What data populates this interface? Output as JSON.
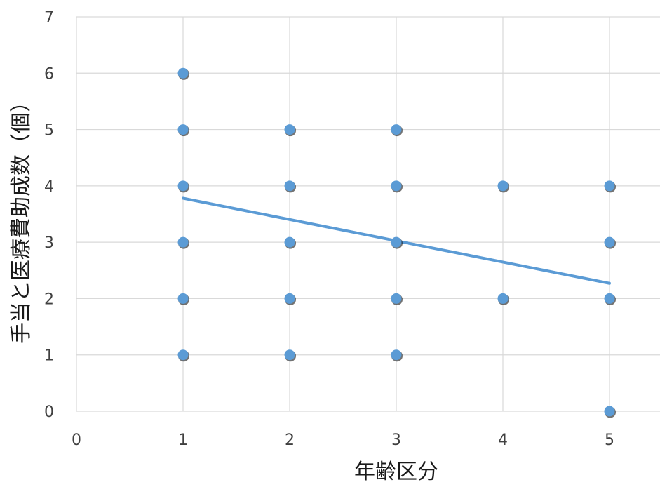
{
  "chart_data": {
    "type": "scatter",
    "title": "",
    "xlabel": "年齢区分",
    "ylabel": "手当と医療費助成数（個）",
    "xlim": [
      0,
      5.5
    ],
    "ylim": [
      0,
      7
    ],
    "x_ticks": [
      "0",
      "1",
      "2",
      "3",
      "4",
      "5"
    ],
    "y_ticks": [
      "0",
      "1",
      "2",
      "3",
      "4",
      "5",
      "6",
      "7"
    ],
    "grid": true,
    "legend": "none",
    "point_color": "#5b9bd5",
    "trendline_color": "#5b9bd5",
    "series": [
      {
        "points": [
          {
            "x": 1,
            "y": 6
          },
          {
            "x": 1,
            "y": 5
          },
          {
            "x": 1,
            "y": 4
          },
          {
            "x": 1,
            "y": 3
          },
          {
            "x": 1,
            "y": 2
          },
          {
            "x": 1,
            "y": 1
          },
          {
            "x": 2,
            "y": 5
          },
          {
            "x": 2,
            "y": 4
          },
          {
            "x": 2,
            "y": 3
          },
          {
            "x": 2,
            "y": 2
          },
          {
            "x": 2,
            "y": 1
          },
          {
            "x": 3,
            "y": 5
          },
          {
            "x": 3,
            "y": 4
          },
          {
            "x": 3,
            "y": 3
          },
          {
            "x": 3,
            "y": 2
          },
          {
            "x": 3,
            "y": 1
          },
          {
            "x": 4,
            "y": 4
          },
          {
            "x": 4,
            "y": 2
          },
          {
            "x": 5,
            "y": 4
          },
          {
            "x": 5,
            "y": 3
          },
          {
            "x": 5,
            "y": 2
          },
          {
            "x": 5,
            "y": 0
          }
        ]
      }
    ],
    "trendline": {
      "x": [
        1,
        5
      ],
      "y": [
        3.78,
        2.27
      ]
    }
  }
}
